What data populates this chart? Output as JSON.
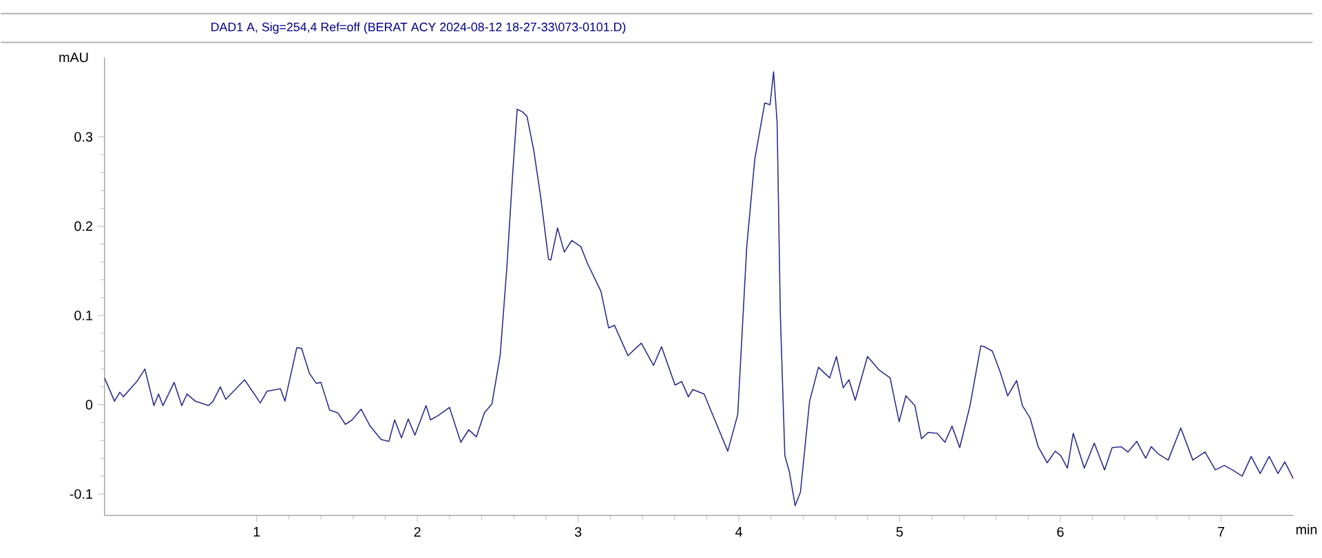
{
  "chart_data": {
    "type": "line",
    "title": "DAD1 A, Sig=254,4 Ref=off (BERAT ACY 2024-08-12 18-27-33\\073-0101.D)",
    "xlabel": "min",
    "ylabel": "mAU",
    "xlim": [
      0.054,
      7.45
    ],
    "ylim": [
      -0.124,
      0.389
    ],
    "xticks": [
      1,
      2,
      3,
      4,
      5,
      6,
      7
    ],
    "yticks": [
      -0.1,
      0,
      0.1,
      0.2,
      0.3
    ],
    "grid": false,
    "marker": "none",
    "line_style": "solid",
    "series": [
      {
        "color": "#2b2b8c",
        "x": [
          0.054,
          0.116,
          0.149,
          0.171,
          0.255,
          0.305,
          0.361,
          0.39,
          0.417,
          0.487,
          0.534,
          0.567,
          0.618,
          0.701,
          0.729,
          0.774,
          0.808,
          0.925,
          1.023,
          1.064,
          1.148,
          1.176,
          1.25,
          1.28,
          1.329,
          1.371,
          1.4,
          1.454,
          1.505,
          1.552,
          1.594,
          1.65,
          1.706,
          1.775,
          1.823,
          1.859,
          1.901,
          1.943,
          1.985,
          2.054,
          2.082,
          2.13,
          2.2,
          2.27,
          2.32,
          2.367,
          2.417,
          2.464,
          2.515,
          2.556,
          2.593,
          2.621,
          2.654,
          2.682,
          2.724,
          2.766,
          2.816,
          2.83,
          2.872,
          2.914,
          2.961,
          3.017,
          3.059,
          3.142,
          3.19,
          3.226,
          3.31,
          3.393,
          3.469,
          3.519,
          3.603,
          3.644,
          3.686,
          3.714,
          3.784,
          3.848,
          3.931,
          3.993,
          4.049,
          4.099,
          4.161,
          4.194,
          4.216,
          4.238,
          4.258,
          4.286,
          4.314,
          4.35,
          4.383,
          4.44,
          4.495,
          4.565,
          4.607,
          4.649,
          4.685,
          4.724,
          4.8,
          4.872,
          4.941,
          4.997,
          5.039,
          5.095,
          5.136,
          5.178,
          5.234,
          5.282,
          5.326,
          5.374,
          5.438,
          5.505,
          5.527,
          5.577,
          5.625,
          5.672,
          5.728,
          5.764,
          5.812,
          5.862,
          5.918,
          5.968,
          6.002,
          6.044,
          6.08,
          6.149,
          6.211,
          6.275,
          6.322,
          6.378,
          6.42,
          6.475,
          6.531,
          6.565,
          6.609,
          6.671,
          6.749,
          6.824,
          6.9,
          6.964,
          7.02,
          7.07,
          7.131,
          7.187,
          7.243,
          7.299,
          7.354,
          7.396,
          7.45
        ],
        "values": [
          0.03,
          0.004,
          0.014,
          0.009,
          0.026,
          0.04,
          -0.001,
          0.012,
          -0.001,
          0.025,
          -0.001,
          0.012,
          0.004,
          -0.001,
          0.004,
          0.02,
          0.006,
          0.028,
          0.002,
          0.015,
          0.018,
          0.004,
          0.064,
          0.063,
          0.035,
          0.024,
          0.025,
          -0.006,
          -0.009,
          -0.022,
          -0.017,
          -0.005,
          -0.024,
          -0.039,
          -0.041,
          -0.017,
          -0.037,
          -0.016,
          -0.034,
          -0.001,
          -0.017,
          -0.012,
          -0.003,
          -0.042,
          -0.028,
          -0.036,
          -0.009,
          0.001,
          0.055,
          0.152,
          0.259,
          0.331,
          0.328,
          0.323,
          0.285,
          0.234,
          0.163,
          0.162,
          0.198,
          0.171,
          0.184,
          0.177,
          0.158,
          0.127,
          0.086,
          0.089,
          0.055,
          0.069,
          0.044,
          0.065,
          0.022,
          0.026,
          0.009,
          0.017,
          0.012,
          -0.016,
          -0.052,
          -0.011,
          0.177,
          0.275,
          0.338,
          0.336,
          0.373,
          0.316,
          0.101,
          -0.057,
          -0.075,
          -0.113,
          -0.098,
          0.004,
          0.042,
          0.03,
          0.054,
          0.019,
          0.028,
          0.005,
          0.054,
          0.039,
          0.03,
          -0.019,
          0.01,
          -0.001,
          -0.038,
          -0.031,
          -0.032,
          -0.042,
          -0.024,
          -0.048,
          -0.001,
          0.066,
          0.065,
          0.06,
          0.037,
          0.01,
          0.027,
          -0.001,
          -0.015,
          -0.047,
          -0.065,
          -0.052,
          -0.057,
          -0.071,
          -0.032,
          -0.071,
          -0.043,
          -0.073,
          -0.048,
          -0.047,
          -0.053,
          -0.041,
          -0.06,
          -0.047,
          -0.055,
          -0.062,
          -0.026,
          -0.062,
          -0.053,
          -0.073,
          -0.068,
          -0.073,
          -0.08,
          -0.058,
          -0.077,
          -0.058,
          -0.077,
          -0.064,
          -0.083
        ]
      }
    ]
  }
}
